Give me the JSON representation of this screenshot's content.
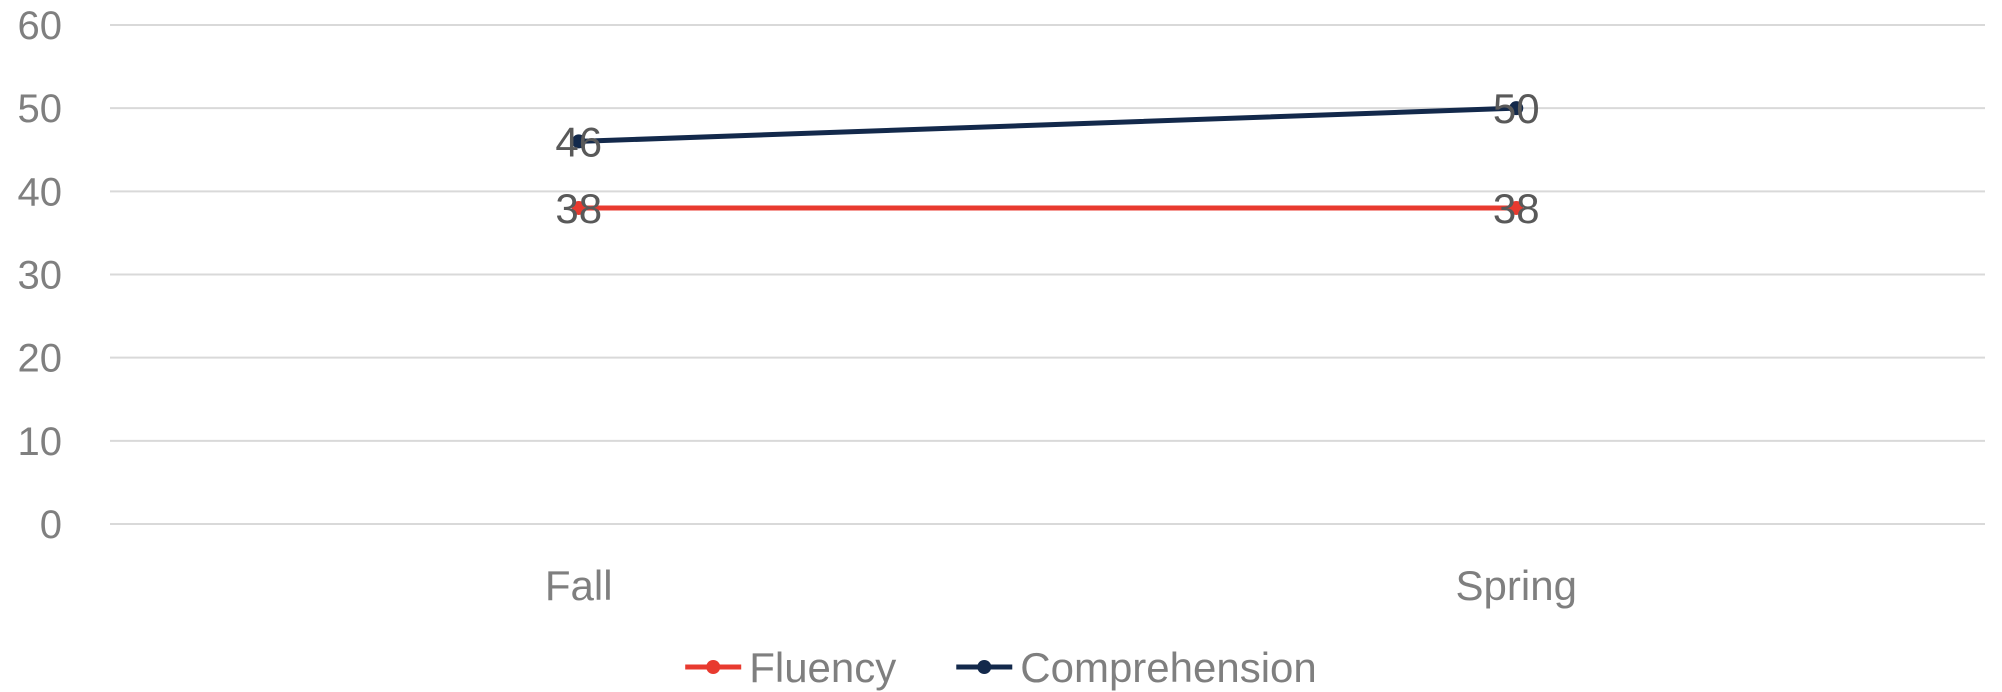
{
  "chart_data": {
    "type": "line",
    "title": "",
    "xlabel": "",
    "ylabel": "",
    "categories": [
      "Fall",
      "Spring"
    ],
    "ylim": [
      0,
      60
    ],
    "yticks": [
      0,
      10,
      20,
      30,
      40,
      50,
      60
    ],
    "grid": true,
    "legend": "bottom-center",
    "series": [
      {
        "name": "Fluency",
        "values": [
          38,
          38
        ],
        "color": "#e83a2f"
      },
      {
        "name": "Comprehension",
        "values": [
          46,
          50
        ],
        "color": "#13294b"
      }
    ],
    "data_labels": true
  }
}
